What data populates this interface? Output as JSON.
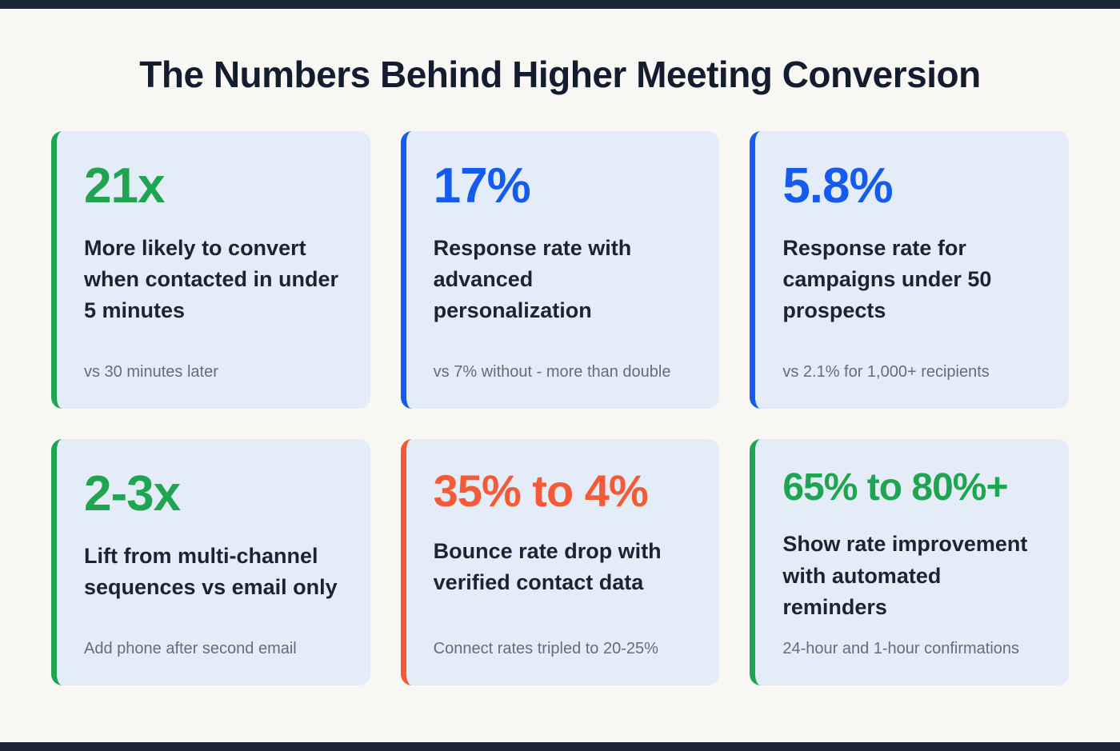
{
  "page": {
    "title": "The Numbers Behind Higher Meeting Conversion",
    "background_color": "#f8f7f4",
    "edge_bar_color": "#1b2336",
    "card_background_color": "#e4edf7"
  },
  "colors": {
    "green": "#1fa551",
    "blue": "#155cee",
    "orange": "#f55a38",
    "heading_text": "#141c30",
    "body_text": "#1b2434",
    "footnote_text": "#646d7a"
  },
  "cards": [
    {
      "value": "21x",
      "accent_color": "#1fa551",
      "description": "More likely to convert when contacted in under 5 minutes",
      "footnote": "vs 30 minutes later"
    },
    {
      "value": "17%",
      "accent_color": "#155cee",
      "description": "Response rate with advanced personalization",
      "footnote": "vs 7% without - more than double"
    },
    {
      "value": "5.8%",
      "accent_color": "#155cee",
      "description": "Response rate for campaigns under 50 prospects",
      "footnote": "vs 2.1% for 1,000+ recipients"
    },
    {
      "value": "2-3x",
      "accent_color": "#1fa551",
      "description": "Lift from multi-channel sequences vs email only",
      "footnote": "Add phone after second email"
    },
    {
      "value": "35% to 4%",
      "accent_color": "#f55a38",
      "description": "Bounce rate drop with verified contact data",
      "footnote": "Connect rates tripled to 20-25%"
    },
    {
      "value": "65% to 80%+",
      "accent_color": "#1fa551",
      "description": "Show rate improvement with automated reminders",
      "footnote": "24-hour and 1-hour confirmations"
    }
  ]
}
